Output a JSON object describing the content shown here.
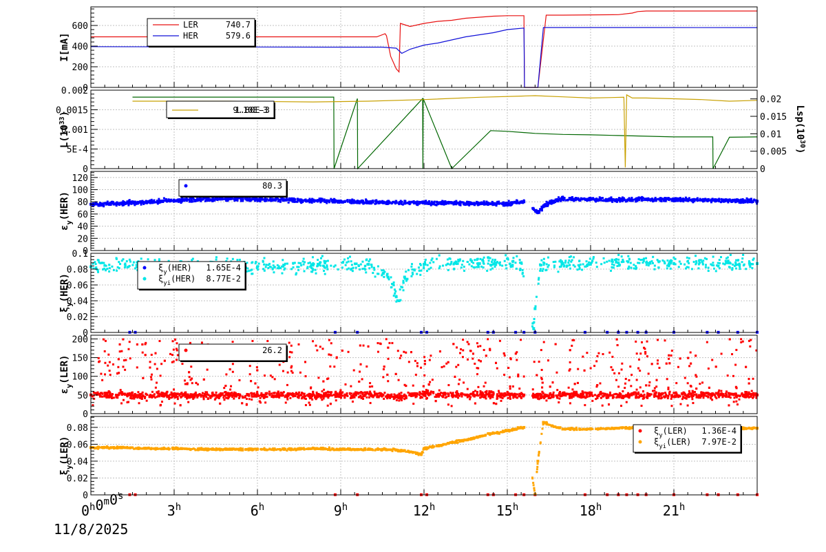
{
  "colors": {
    "ler": "#e81010",
    "her": "#1010d8",
    "lumi_green": "#006600",
    "lumi_gold": "#c8a000",
    "cyan": "#00e6e6",
    "blue": "#0000ff",
    "orange": "#ffa500",
    "red": "#ff0000",
    "grid": "#c0c0c0",
    "frame": "#000000"
  },
  "x_axis": {
    "ticks": [
      "0h0m0s",
      "3h",
      "6h",
      "9h",
      "12h",
      "15h",
      "18h",
      "21h"
    ],
    "tick_values_h": [
      0,
      3,
      6,
      9,
      12,
      15,
      18,
      21
    ],
    "range_h": [
      0,
      24
    ],
    "date": "11/8/2025"
  },
  "chart_data": [
    {
      "type": "line",
      "ylabel": "I[mA]",
      "ylim": [
        0,
        780
      ],
      "yticks": [
        "0",
        "200",
        "400",
        "600"
      ],
      "ytick_values": [
        0,
        200,
        400,
        600
      ],
      "legend": {
        "placement": "top-left",
        "entries": [
          {
            "name": "LER",
            "value": "740.7",
            "color": "ler"
          },
          {
            "name": "HER",
            "value": "579.6",
            "color": "her"
          }
        ]
      },
      "series": [
        {
          "name": "LER",
          "color": "ler",
          "x": [
            0,
            10.3,
            10.6,
            10.65,
            10.8,
            11.0,
            11.1,
            11.15,
            11.5,
            12.0,
            12.5,
            13.0,
            13.5,
            14.0,
            14.5,
            15.0,
            15.6,
            15.62,
            16.1,
            16.4,
            17.0,
            19.0,
            19.5,
            19.7,
            20.0,
            22.0,
            24.0
          ],
          "y": [
            490,
            490,
            520,
            500,
            300,
            180,
            150,
            620,
            590,
            620,
            640,
            650,
            670,
            680,
            690,
            695,
            695,
            0,
            0,
            700,
            700,
            705,
            720,
            735,
            740,
            740,
            740
          ]
        },
        {
          "name": "HER",
          "color": "her",
          "x": [
            0,
            8.5,
            10.0,
            10.5,
            11.0,
            11.2,
            11.5,
            12.0,
            12.5,
            13.0,
            13.5,
            14.0,
            14.5,
            15.0,
            15.6,
            15.62,
            16.1,
            16.3,
            17.0,
            20.0,
            24.0
          ],
          "y": [
            395,
            390,
            390,
            390,
            380,
            330,
            370,
            410,
            430,
            460,
            490,
            510,
            530,
            560,
            575,
            0,
            0,
            580,
            580,
            580,
            579
          ]
        }
      ]
    },
    {
      "type": "line",
      "ylabel": "L(10^33)",
      "ylim": [
        0,
        0.002
      ],
      "yticks": [
        "0",
        "5E-4",
        "0.001",
        "0.0015",
        "0.002"
      ],
      "ytick_values": [
        0,
        0.0005,
        0.001,
        0.0015,
        0.002
      ],
      "y2label": "Lsp(10^30)",
      "y2lim": [
        0,
        0.0225
      ],
      "y2ticks": [
        "0",
        "0.005",
        "0.01",
        "0.015",
        "0.02"
      ],
      "y2tick_values": [
        0,
        0.005,
        0.01,
        0.015,
        0.02
      ],
      "legend": {
        "placement": "top-left",
        "entries": [
          {
            "name": "",
            "value": "1.80E-3",
            "color": "lumi_gold"
          },
          {
            "name": "",
            "value": "9.10E-3",
            "color": "lumi_green"
          }
        ]
      },
      "series": [
        {
          "name": "",
          "color": "lumi_green",
          "axis": "y2",
          "x": [
            1.5,
            8.75,
            8.76,
            9.6,
            9.61,
            11.95,
            11.96,
            11.97,
            13.0,
            14.4,
            15.0,
            16.0,
            17.0,
            18.0,
            19.0,
            20.0,
            21.0,
            22.4,
            22.41,
            23.0,
            24.0
          ],
          "y": [
            0.0205,
            0.0205,
            0.0,
            0.0201,
            0.0,
            0.0201,
            0.0,
            0.0201,
            0.0,
            0.0109,
            0.0107,
            0.0101,
            0.0098,
            0.0097,
            0.0095,
            0.0093,
            0.0091,
            0.0091,
            0.0,
            0.009,
            0.0091
          ]
        },
        {
          "name": "",
          "color": "lumi_gold",
          "axis": "y1",
          "x": [
            1.5,
            5.0,
            8.0,
            10.0,
            12.0,
            14.0,
            15.5,
            16.0,
            17.0,
            18.0,
            19.2,
            19.25,
            19.3,
            19.5,
            20.0,
            21.0,
            22.0,
            23.0,
            24.0
          ],
          "y": [
            0.00172,
            0.00172,
            0.0017,
            0.00172,
            0.00176,
            0.00182,
            0.00185,
            0.00186,
            0.00183,
            0.0018,
            0.00182,
            3e-05,
            0.00188,
            0.0018,
            0.0018,
            0.00178,
            0.00176,
            0.00172,
            0.00174
          ]
        }
      ]
    },
    {
      "type": "scatter",
      "ylabel": "εy(HER)",
      "ylim": [
        0,
        130
      ],
      "yticks": [
        "0",
        "20",
        "40",
        "60",
        "80",
        "100",
        "120"
      ],
      "ytick_values": [
        0,
        20,
        40,
        60,
        80,
        100,
        120
      ],
      "legend": {
        "placement": "top-left",
        "entries": [
          {
            "name": "",
            "value": "80.3",
            "color": "blue"
          }
        ]
      },
      "series": [
        {
          "name": "",
          "color": "blue",
          "x": [
            0.0,
            1.0,
            2.0,
            3.0,
            4.0,
            5.0,
            6.0,
            7.0,
            8.0,
            9.0,
            10.0,
            11.0,
            12.0,
            13.0,
            14.0,
            15.0,
            15.6,
            16.1,
            16.3,
            16.5,
            17.0,
            18.0,
            19.0,
            20.0,
            21.0,
            22.0,
            23.0,
            24.0
          ],
          "y": [
            76,
            77,
            80,
            82,
            84,
            85,
            84,
            83,
            82,
            81,
            80,
            79,
            78,
            78,
            77,
            77,
            80,
            62,
            72,
            78,
            85,
            84,
            83,
            84,
            84,
            83,
            82,
            81
          ]
        }
      ]
    },
    {
      "type": "scatter",
      "ylabel": "ξy(HER)",
      "ylim": [
        0,
        0.1
      ],
      "yticks": [
        "0",
        "0.02",
        "0.04",
        "0.06",
        "0.08",
        "0.1"
      ],
      "ytick_values": [
        0,
        0.02,
        0.04,
        0.06,
        0.08,
        0.1
      ],
      "legend": {
        "placement": "top-left",
        "entries": [
          {
            "name": "ξy(HER)",
            "value": "1.65E-4",
            "color": "blue"
          },
          {
            "name": "ξyi(HER)",
            "value": "8.77E-2",
            "color": "cyan"
          }
        ]
      },
      "series": [
        {
          "name": "ξy(HER)",
          "color": "blue",
          "x": [
            1.4,
            1.6,
            8.8,
            9.6,
            11.9,
            12.1,
            14.3,
            14.5,
            15.3,
            15.6,
            16.0,
            17.8,
            18.6,
            19.0,
            19.3,
            19.7,
            20.0,
            21.0,
            22.2,
            22.6,
            23.3,
            24.0
          ],
          "y": [
            0.0002,
            0.0002,
            0.0002,
            0.0002,
            0.0002,
            0.0002,
            0.0002,
            0.0002,
            0.0002,
            0.0002,
            0.0002,
            0.0002,
            0.0002,
            0.0002,
            0.0002,
            0.0002,
            0.0002,
            0.0002,
            0.0002,
            0.0002,
            0.0002,
            0.0002
          ]
        },
        {
          "name": "ξyi(HER)",
          "color": "cyan",
          "x": [
            0.0,
            2.0,
            4.0,
            6.0,
            8.0,
            10.0,
            10.7,
            11.0,
            11.1,
            11.3,
            12.0,
            14.0,
            15.5,
            15.95,
            16.0,
            16.2,
            17.0,
            19.0,
            21.0,
            23.0,
            24.0
          ],
          "y": [
            0.083,
            0.085,
            0.084,
            0.083,
            0.085,
            0.086,
            0.07,
            0.045,
            0.04,
            0.07,
            0.086,
            0.087,
            0.088,
            0.005,
            0.03,
            0.085,
            0.087,
            0.088,
            0.087,
            0.088,
            0.087
          ]
        }
      ]
    },
    {
      "type": "scatter",
      "ylabel": "εy(LER)",
      "ylim": [
        0,
        210
      ],
      "yticks": [
        "0",
        "50",
        "100",
        "150",
        "200"
      ],
      "ytick_values": [
        0,
        50,
        100,
        150,
        200
      ],
      "legend": {
        "placement": "top-left",
        "entries": [
          {
            "name": "",
            "value": "26.2",
            "color": "red"
          }
        ]
      },
      "series": [
        {
          "name": "",
          "color": "red",
          "x": [
            0.0,
            1.5,
            3.0,
            4.5,
            6.0,
            7.5,
            9.0,
            10.5,
            11.0,
            12.0,
            13.5,
            15.0,
            15.6,
            16.1,
            17.5,
            19.0,
            20.5,
            22.0,
            23.5,
            24.0
          ],
          "y": [
            50,
            49,
            50,
            49,
            50,
            49,
            50,
            49,
            45,
            52,
            50,
            51,
            50,
            48,
            50,
            49,
            50,
            49,
            50,
            50
          ]
        }
      ]
    },
    {
      "type": "scatter",
      "ylabel": "ξy(LER)",
      "ylim": [
        0,
        0.093
      ],
      "yticks": [
        "0",
        "0.02",
        "0.04",
        "0.06",
        "0.08"
      ],
      "ytick_values": [
        0,
        0.02,
        0.04,
        0.06,
        0.08
      ],
      "legend": {
        "placement": "top-right",
        "entries": [
          {
            "name": "ξy(LER)",
            "value": "1.36E-4",
            "color": "red"
          },
          {
            "name": "ξyi(LER)",
            "value": "7.97E-2",
            "color": "orange"
          }
        ]
      },
      "series": [
        {
          "name": "ξy(LER)",
          "color": "red",
          "x": [
            1.4,
            1.6,
            8.8,
            9.6,
            11.9,
            12.1,
            14.3,
            14.5,
            15.3,
            15.6,
            16.0,
            17.8,
            18.6,
            19.0,
            19.3,
            19.7,
            20.0,
            21.0,
            22.2,
            22.6,
            23.3,
            24.0
          ],
          "y": [
            0.0002,
            0.0002,
            0.0002,
            0.0002,
            0.0002,
            0.0002,
            0.0002,
            0.0002,
            0.0002,
            0.0002,
            0.0002,
            0.0002,
            0.0002,
            0.0002,
            0.0002,
            0.0002,
            0.0002,
            0.0002,
            0.0002,
            0.0002,
            0.0002,
            0.0002
          ]
        },
        {
          "name": "ξyi(LER)",
          "color": "orange",
          "x": [
            0.0,
            1.0,
            2.0,
            3.0,
            4.0,
            5.0,
            6.0,
            7.0,
            8.0,
            9.0,
            10.0,
            10.5,
            11.0,
            11.5,
            11.9,
            12.0,
            12.5,
            13.0,
            13.5,
            14.0,
            14.5,
            15.0,
            15.6,
            16.0,
            16.1,
            16.3,
            16.6,
            17.0,
            18.0,
            19.0,
            20.0,
            21.0,
            22.0,
            23.0,
            24.0
          ],
          "y": [
            0.056,
            0.056,
            0.055,
            0.055,
            0.054,
            0.054,
            0.054,
            0.054,
            0.055,
            0.054,
            0.054,
            0.054,
            0.053,
            0.051,
            0.048,
            0.055,
            0.058,
            0.062,
            0.065,
            0.069,
            0.073,
            0.076,
            0.08,
            0.001,
            0.04,
            0.086,
            0.082,
            0.078,
            0.078,
            0.079,
            0.08,
            0.08,
            0.081,
            0.079,
            0.079
          ]
        }
      ]
    }
  ]
}
